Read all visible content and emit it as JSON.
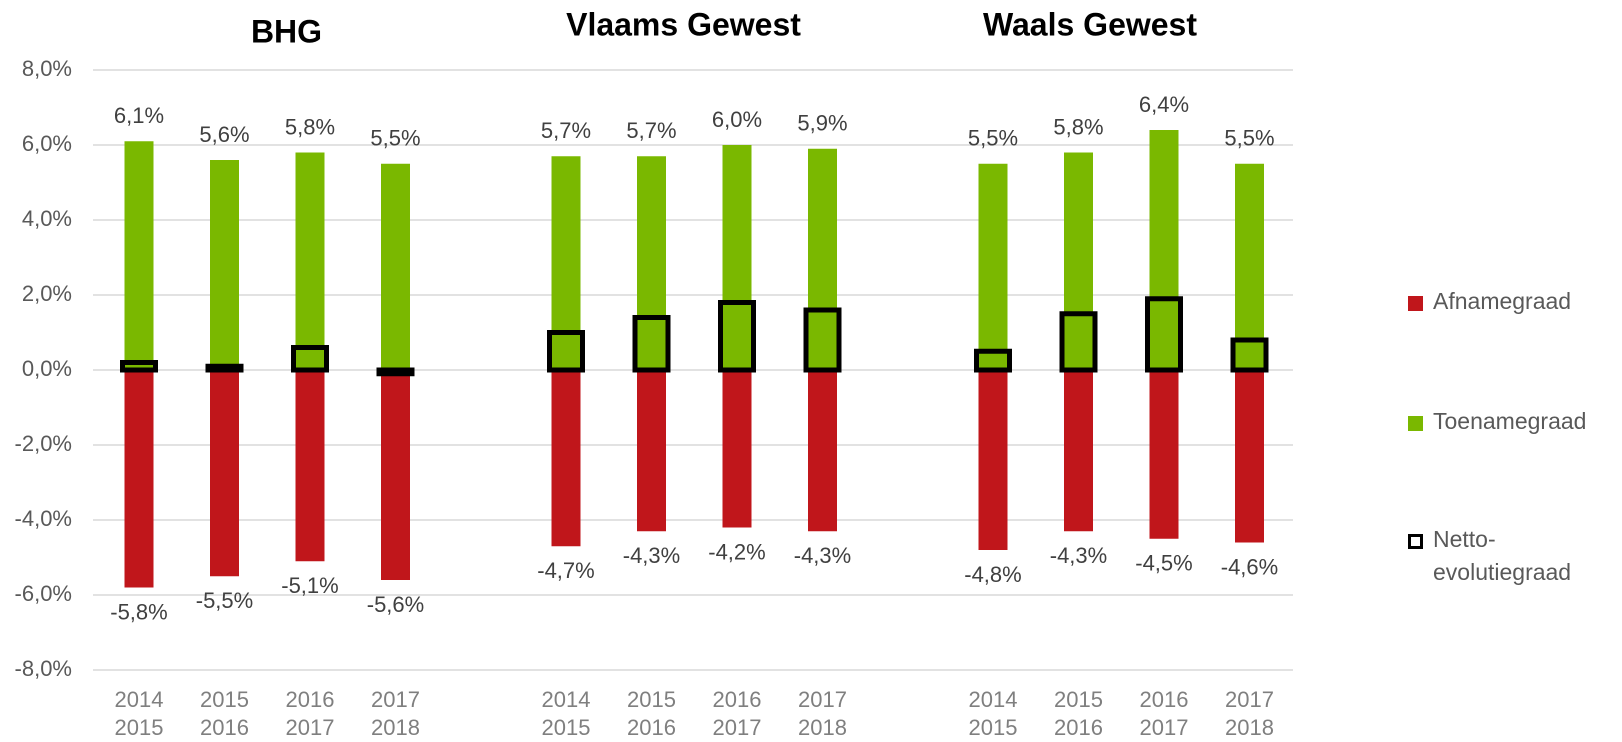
{
  "chart_data": [
    {
      "type": "bar",
      "title": "BHG",
      "categories": [
        [
          "2014",
          "2015"
        ],
        [
          "2015",
          "2016"
        ],
        [
          "2016",
          "2017"
        ],
        [
          "2017",
          "2018"
        ]
      ],
      "ylim": [
        -8,
        8
      ],
      "yticks": [
        {
          "value": -8,
          "label": "-8,0%"
        },
        {
          "value": -6,
          "label": "-6,0%"
        },
        {
          "value": -4,
          "label": "-4,0%"
        },
        {
          "value": -2,
          "label": "-2,0%"
        },
        {
          "value": 0,
          "label": "0,0%"
        },
        {
          "value": 2,
          "label": "2,0%"
        },
        {
          "value": 4,
          "label": "4,0%"
        },
        {
          "value": 6,
          "label": "6,0%"
        },
        {
          "value": 8,
          "label": "8,0%"
        }
      ],
      "grid": true,
      "legend": "right",
      "series": [
        {
          "name": "Afnamegraad",
          "color": "#c0161b",
          "values": [
            -5.8,
            -5.5,
            -5.1,
            -5.6
          ],
          "value_labels": [
            "-5,8%",
            "-5,5%",
            "-5,1%",
            "-5,6%"
          ]
        },
        {
          "name": "Toenamegraad",
          "color": "#7ab800",
          "values": [
            6.1,
            5.6,
            5.8,
            5.5
          ],
          "value_labels": [
            "6,1%",
            "5,6%",
            "5,8%",
            "5,5%"
          ]
        },
        {
          "name": "Netto-evolutiegraad",
          "color": "#000000",
          "values": [
            0.2,
            0.1,
            0.6,
            -0.1
          ]
        }
      ]
    },
    {
      "type": "bar",
      "title": "Vlaams Gewest",
      "categories": [
        [
          "2014",
          "2015"
        ],
        [
          "2015",
          "2016"
        ],
        [
          "2016",
          "2017"
        ],
        [
          "2017",
          "2018"
        ]
      ],
      "ylim": [
        -8,
        8
      ],
      "series": [
        {
          "color": "#c0161b",
          "values": [
            -4.7,
            -4.3,
            -4.2,
            -4.3
          ],
          "value_labels": [
            "-4,7%",
            "-4,3%",
            "-4,2%",
            "-4,3%"
          ]
        },
        {
          "color": "#7ab800",
          "values": [
            5.7,
            5.7,
            6.0,
            5.9
          ],
          "value_labels": [
            "5,7%",
            "5,7%",
            "6,0%",
            "5,9%"
          ]
        },
        {
          "color": "#000000",
          "values": [
            1.0,
            1.4,
            1.8,
            1.6
          ]
        }
      ]
    },
    {
      "type": "bar",
      "title": "Waals Gewest",
      "categories": [
        [
          "2014",
          "2015"
        ],
        [
          "2015",
          "2016"
        ],
        [
          "2016",
          "2017"
        ],
        [
          "2017",
          "2018"
        ]
      ],
      "ylim": [
        -8,
        8
      ],
      "series": [
        {
          "color": "#c0161b",
          "values": [
            -4.8,
            -4.3,
            -4.5,
            -4.6
          ],
          "value_labels": [
            "-4,8%",
            "-4,3%",
            "-4,5%",
            "-4,6%"
          ]
        },
        {
          "color": "#7ab800",
          "values": [
            5.5,
            5.8,
            6.4,
            5.5
          ],
          "value_labels": [
            "5,5%",
            "5,8%",
            "6,4%",
            "5,5%"
          ]
        },
        {
          "color": "#000000",
          "values": [
            0.5,
            1.5,
            1.9,
            0.8
          ]
        }
      ]
    }
  ]
}
